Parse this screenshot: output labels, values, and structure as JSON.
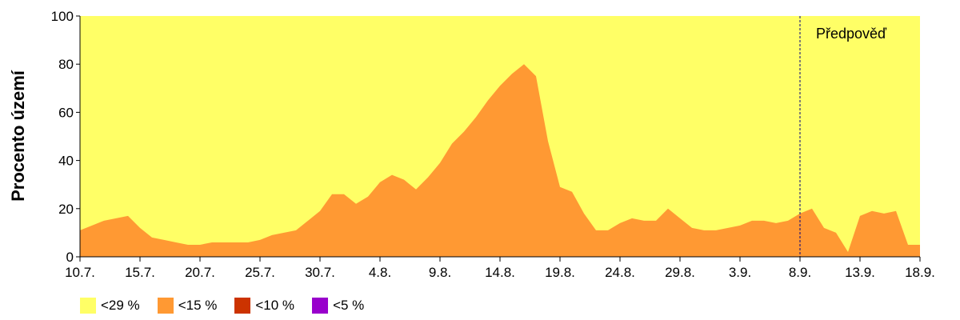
{
  "chart_data": {
    "type": "area",
    "ylabel": "Procento území",
    "ylim": [
      0,
      100
    ],
    "yticks": [
      0,
      20,
      40,
      60,
      80,
      100
    ],
    "x_tick_labels": [
      "10.7.",
      "15.7.",
      "20.7.",
      "25.7.",
      "30.7.",
      "4.8.",
      "9.8.",
      "14.8.",
      "19.8.",
      "24.8.",
      "29.8.",
      "3.9.",
      "8.9.",
      "13.9.",
      "18.9."
    ],
    "x_start": "10.7.",
    "x_end": "18.9.",
    "forecast_start": "8.9.",
    "forecast_label": "Předpověď",
    "grid": false,
    "legend_position": "bottom",
    "series": [
      {
        "name": "<29 %",
        "color": "#ffff66",
        "note": "fills remainder to 100"
      },
      {
        "name": "<15 %",
        "color": "#ff9933",
        "dates": [
          "10.7.",
          "11.7.",
          "12.7.",
          "13.7.",
          "14.7.",
          "15.7.",
          "16.7.",
          "17.7.",
          "18.7.",
          "19.7.",
          "20.7.",
          "21.7.",
          "22.7.",
          "23.7.",
          "24.7.",
          "25.7.",
          "26.7.",
          "27.7.",
          "28.7.",
          "29.7.",
          "30.7.",
          "31.7.",
          "1.8.",
          "2.8.",
          "3.8.",
          "4.8.",
          "5.8.",
          "6.8.",
          "7.8.",
          "8.8.",
          "9.8.",
          "10.8.",
          "11.8.",
          "12.8.",
          "13.8.",
          "14.8.",
          "15.8.",
          "16.8.",
          "17.8.",
          "18.8.",
          "19.8.",
          "20.8.",
          "21.8.",
          "22.8.",
          "23.8.",
          "24.8.",
          "25.8.",
          "26.8.",
          "27.8.",
          "28.8.",
          "29.8.",
          "30.8.",
          "31.8.",
          "1.9.",
          "2.9.",
          "3.9.",
          "4.9.",
          "5.9.",
          "6.9.",
          "7.9.",
          "8.9.",
          "9.9.",
          "10.9.",
          "11.9.",
          "12.9.",
          "13.9.",
          "14.9.",
          "15.9.",
          "16.9.",
          "17.9.",
          "18.9."
        ],
        "values": [
          11,
          13,
          15,
          16,
          17,
          12,
          8,
          7,
          6,
          5,
          5,
          6,
          6,
          6,
          6,
          7,
          9,
          10,
          11,
          15,
          19,
          26,
          26,
          22,
          25,
          31,
          34,
          32,
          28,
          33,
          39,
          47,
          52,
          58,
          65,
          71,
          76,
          80,
          75,
          48,
          29,
          27,
          18,
          11,
          11,
          14,
          16,
          15,
          15,
          20,
          16,
          12,
          11,
          11,
          12,
          13,
          15,
          15,
          14,
          15,
          18,
          20,
          12,
          10,
          2,
          17,
          19,
          18,
          19,
          5,
          5
        ]
      },
      {
        "name": "<10 %",
        "color": "#cc3300",
        "values": []
      },
      {
        "name": "<5 %",
        "color": "#9900cc",
        "values": []
      }
    ]
  }
}
